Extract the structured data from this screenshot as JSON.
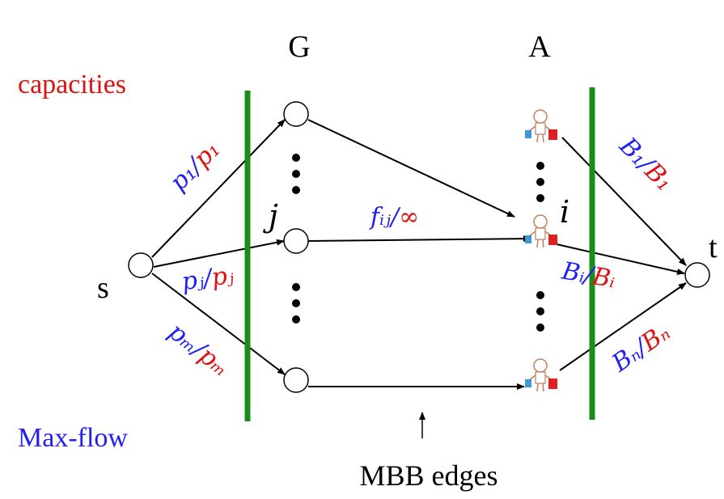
{
  "labels": {
    "left_set": "G",
    "right_set": "A",
    "capacities": "capacities",
    "max_flow": "Max-flow",
    "source": "s",
    "sink": "t",
    "good_index": "j",
    "agent_index": "i",
    "mbb_edges": "MBB edges"
  },
  "edges": [
    {
      "flow": "p₁",
      "sep": "/",
      "capacity": "p₁"
    },
    {
      "flow": "pⱼ",
      "sep": "/",
      "capacity": "pⱼ"
    },
    {
      "flow": "pₘ",
      "sep": "/",
      "capacity": "pₘ"
    },
    {
      "flow": "fᵢⱼ",
      "sep": "/",
      "capacity": "∞"
    },
    {
      "flow": "B₁",
      "sep": "/",
      "capacity": "B₁"
    },
    {
      "flow": "Bᵢ",
      "sep": "/",
      "capacity": "Bᵢ"
    },
    {
      "flow": "Bₙ",
      "sep": "/",
      "capacity": "Bₙ"
    }
  ]
}
